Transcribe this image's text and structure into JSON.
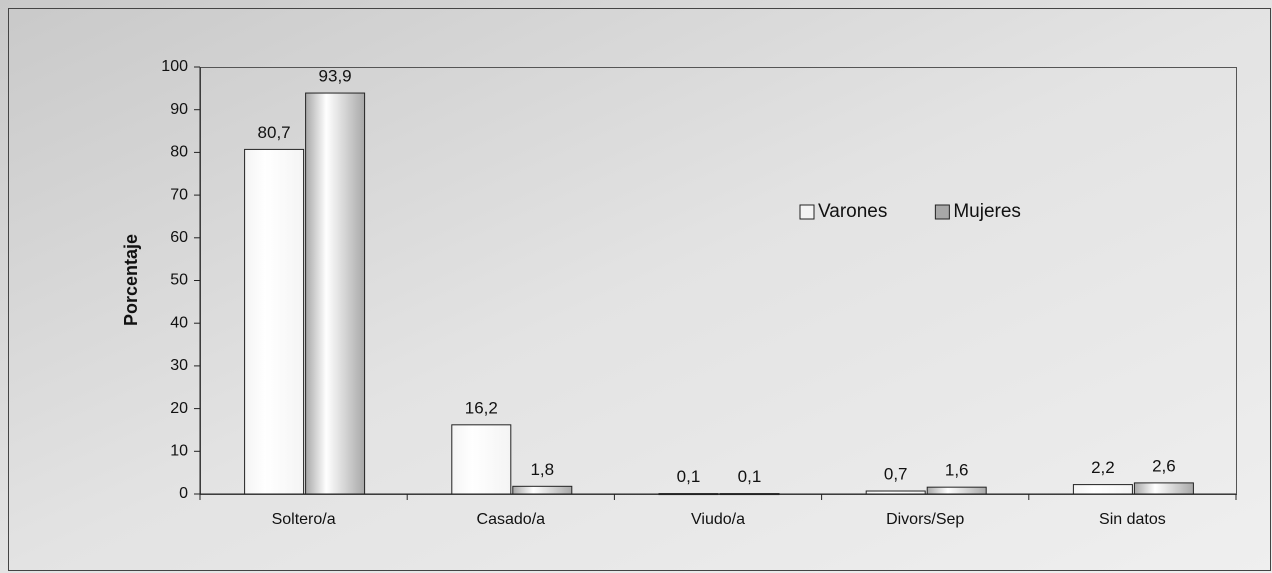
{
  "chart_data": {
    "type": "bar",
    "y_label": "Porcentaje",
    "categories": [
      "Soltero/a",
      "Casado/a",
      "Viudo/a",
      "Divors/Sep",
      "Sin datos"
    ],
    "series": [
      {
        "name": "Varones",
        "color": "#f4f4f4",
        "values": [
          80.7,
          16.2,
          0.1,
          0.7,
          2.2
        ],
        "value_labels": [
          "80,7",
          "16,2",
          "0,1",
          "0,7",
          "2,2"
        ]
      },
      {
        "name": "Mujeres",
        "color": "#a8a8a8",
        "values": [
          93.9,
          1.8,
          0.1,
          1.6,
          2.6
        ],
        "value_labels": [
          "93,9",
          "1,8",
          "0,1",
          "1,6",
          "2,6"
        ]
      }
    ],
    "ylim": [
      0,
      100
    ],
    "yticks": [
      0,
      10,
      20,
      30,
      40,
      50,
      60,
      70,
      80,
      90,
      100
    ],
    "legend": "upper right",
    "grid": false
  }
}
